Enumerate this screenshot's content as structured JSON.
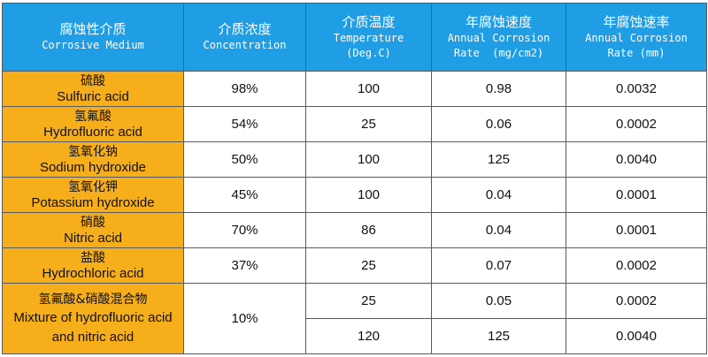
{
  "headers": [
    {
      "zh": "腐蚀性介质",
      "en": [
        "Corrosive Medium"
      ]
    },
    {
      "zh": "介质浓度",
      "en": [
        "Concentration"
      ]
    },
    {
      "zh": "介质温度",
      "en": [
        "Temperature",
        "(Deg.C)"
      ]
    },
    {
      "zh": "年腐蚀速度",
      "en": [
        "Annual Corrosion",
        "Rate  (mg/cm2)"
      ]
    },
    {
      "zh": "年腐蚀速率",
      "en": [
        "Annual Corrosion",
        "Rate (mm)"
      ]
    }
  ],
  "rows": [
    {
      "zh": "硫酸",
      "en": "Sulfuric acid",
      "concentration": "98%",
      "temperature": "100",
      "speed": "0.98",
      "rate": "0.0032"
    },
    {
      "zh": "氢氟酸",
      "en": "Hydrofluoric acid",
      "concentration": "54%",
      "temperature": "25",
      "speed": "0.06",
      "rate": "0.0002"
    },
    {
      "zh": "氢氧化钠",
      "en": "Sodium hydroxide",
      "concentration": "50%",
      "temperature": "100",
      "speed": "125",
      "rate": "0.0040"
    },
    {
      "zh": "氢氧化钾",
      "en": "Potassium hydroxide",
      "concentration": "45%",
      "temperature": "100",
      "speed": "0.04",
      "rate": "0.0001"
    },
    {
      "zh": "硝酸",
      "en": "Nitric acid",
      "concentration": "70%",
      "temperature": "86",
      "speed": "0.04",
      "rate": "0.0001"
    },
    {
      "zh": "盐酸",
      "en": "Hydrochloric acid",
      "concentration": "37%",
      "temperature": "25",
      "speed": "0.07",
      "rate": "0.0002"
    }
  ],
  "mixture": {
    "zh": "氢氟酸&硝酸混合物",
    "en_line1": "Mixture of hydrofluoric acid",
    "en_line2": "and nitric acid",
    "concentration": "10%",
    "sub": [
      {
        "temperature": "25",
        "speed": "0.05",
        "rate": "0.0002"
      },
      {
        "temperature": "120",
        "speed": "125",
        "rate": "0.0040"
      }
    ]
  }
}
